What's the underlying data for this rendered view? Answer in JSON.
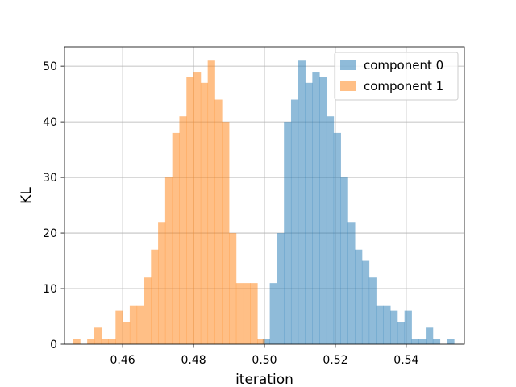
{
  "chart_data": {
    "type": "histogram",
    "xlabel": "iteration",
    "ylabel": "KL",
    "xlim": [
      0.4436,
      0.5564
    ],
    "ylim": [
      0,
      53.5
    ],
    "x_ticks": [
      0.46,
      0.48,
      0.5,
      0.52,
      0.54
    ],
    "x_tick_labels": [
      "0.46",
      "0.48",
      "0.50",
      "0.52",
      "0.54"
    ],
    "y_ticks": [
      0,
      10,
      20,
      30,
      40,
      50
    ],
    "y_tick_labels": [
      "0",
      "10",
      "20",
      "30",
      "40",
      "50"
    ],
    "grid": true,
    "legend_position": "top-right",
    "series": [
      {
        "name": "component 0",
        "color": "#1f77b4",
        "alpha": 0.5,
        "bin_width": 0.002,
        "bins": [
          [
            0.4995,
            1
          ],
          [
            0.5015,
            11
          ],
          [
            0.5035,
            20
          ],
          [
            0.5055,
            40
          ],
          [
            0.5075,
            44
          ],
          [
            0.5095,
            51
          ],
          [
            0.5115,
            47
          ],
          [
            0.5135,
            49
          ],
          [
            0.5155,
            48
          ],
          [
            0.5175,
            41
          ],
          [
            0.5195,
            38
          ],
          [
            0.5215,
            30
          ],
          [
            0.5235,
            22
          ],
          [
            0.5255,
            17
          ],
          [
            0.5275,
            15
          ],
          [
            0.5295,
            12
          ],
          [
            0.5315,
            7
          ],
          [
            0.5335,
            7
          ],
          [
            0.5355,
            6
          ],
          [
            0.5375,
            4
          ],
          [
            0.5395,
            6
          ],
          [
            0.5415,
            1
          ],
          [
            0.5435,
            1
          ],
          [
            0.5455,
            3
          ],
          [
            0.5475,
            1
          ],
          [
            0.5495,
            0
          ],
          [
            0.5515,
            1
          ]
        ]
      },
      {
        "name": "component 1",
        "color": "#ff7f0e",
        "alpha": 0.5,
        "bin_width": 0.002,
        "bins": [
          [
            0.446,
            1
          ],
          [
            0.448,
            0
          ],
          [
            0.45,
            1
          ],
          [
            0.452,
            3
          ],
          [
            0.454,
            1
          ],
          [
            0.456,
            1
          ],
          [
            0.458,
            6
          ],
          [
            0.46,
            4
          ],
          [
            0.462,
            7
          ],
          [
            0.464,
            7
          ],
          [
            0.466,
            12
          ],
          [
            0.468,
            17
          ],
          [
            0.47,
            22
          ],
          [
            0.472,
            30
          ],
          [
            0.474,
            38
          ],
          [
            0.476,
            41
          ],
          [
            0.478,
            48
          ],
          [
            0.48,
            49
          ],
          [
            0.482,
            47
          ],
          [
            0.484,
            51
          ],
          [
            0.486,
            44
          ],
          [
            0.488,
            40
          ],
          [
            0.49,
            20
          ],
          [
            0.492,
            11
          ],
          [
            0.494,
            11
          ],
          [
            0.496,
            11
          ],
          [
            0.498,
            1
          ]
        ]
      }
    ]
  }
}
